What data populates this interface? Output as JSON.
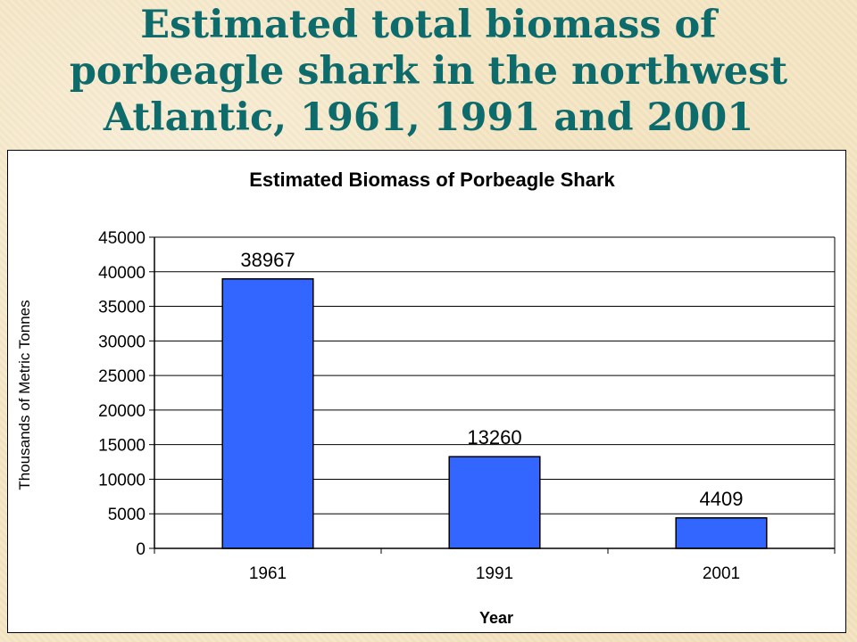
{
  "slide": {
    "title_lines": [
      "Estimated total biomass of",
      "porbeagle shark in the northwest",
      "Atlantic, 1961, 1991 and 2001"
    ],
    "title_color": "#0e6b6b",
    "background_color": "#f5e6c4"
  },
  "chart_data": {
    "type": "bar",
    "title": "Estimated Biomass of Porbeagle Shark",
    "xlabel": "Year",
    "ylabel": "Thousands of Metric Tonnes",
    "categories": [
      "1961",
      "1991",
      "2001"
    ],
    "series": [
      {
        "values": [
          38967,
          13260,
          4409
        ],
        "color": "#3366ff",
        "data_labels": [
          "38967",
          "13260",
          "4409"
        ]
      }
    ],
    "ylim": [
      0,
      45000
    ],
    "yticks": [
      0,
      5000,
      10000,
      15000,
      20000,
      25000,
      30000,
      35000,
      40000,
      45000
    ],
    "ytick_labels": [
      "0",
      "5000",
      "10000",
      "15000",
      "20000",
      "25000",
      "30000",
      "35000",
      "40000",
      "45000"
    ],
    "grid": true,
    "legend": "none"
  }
}
